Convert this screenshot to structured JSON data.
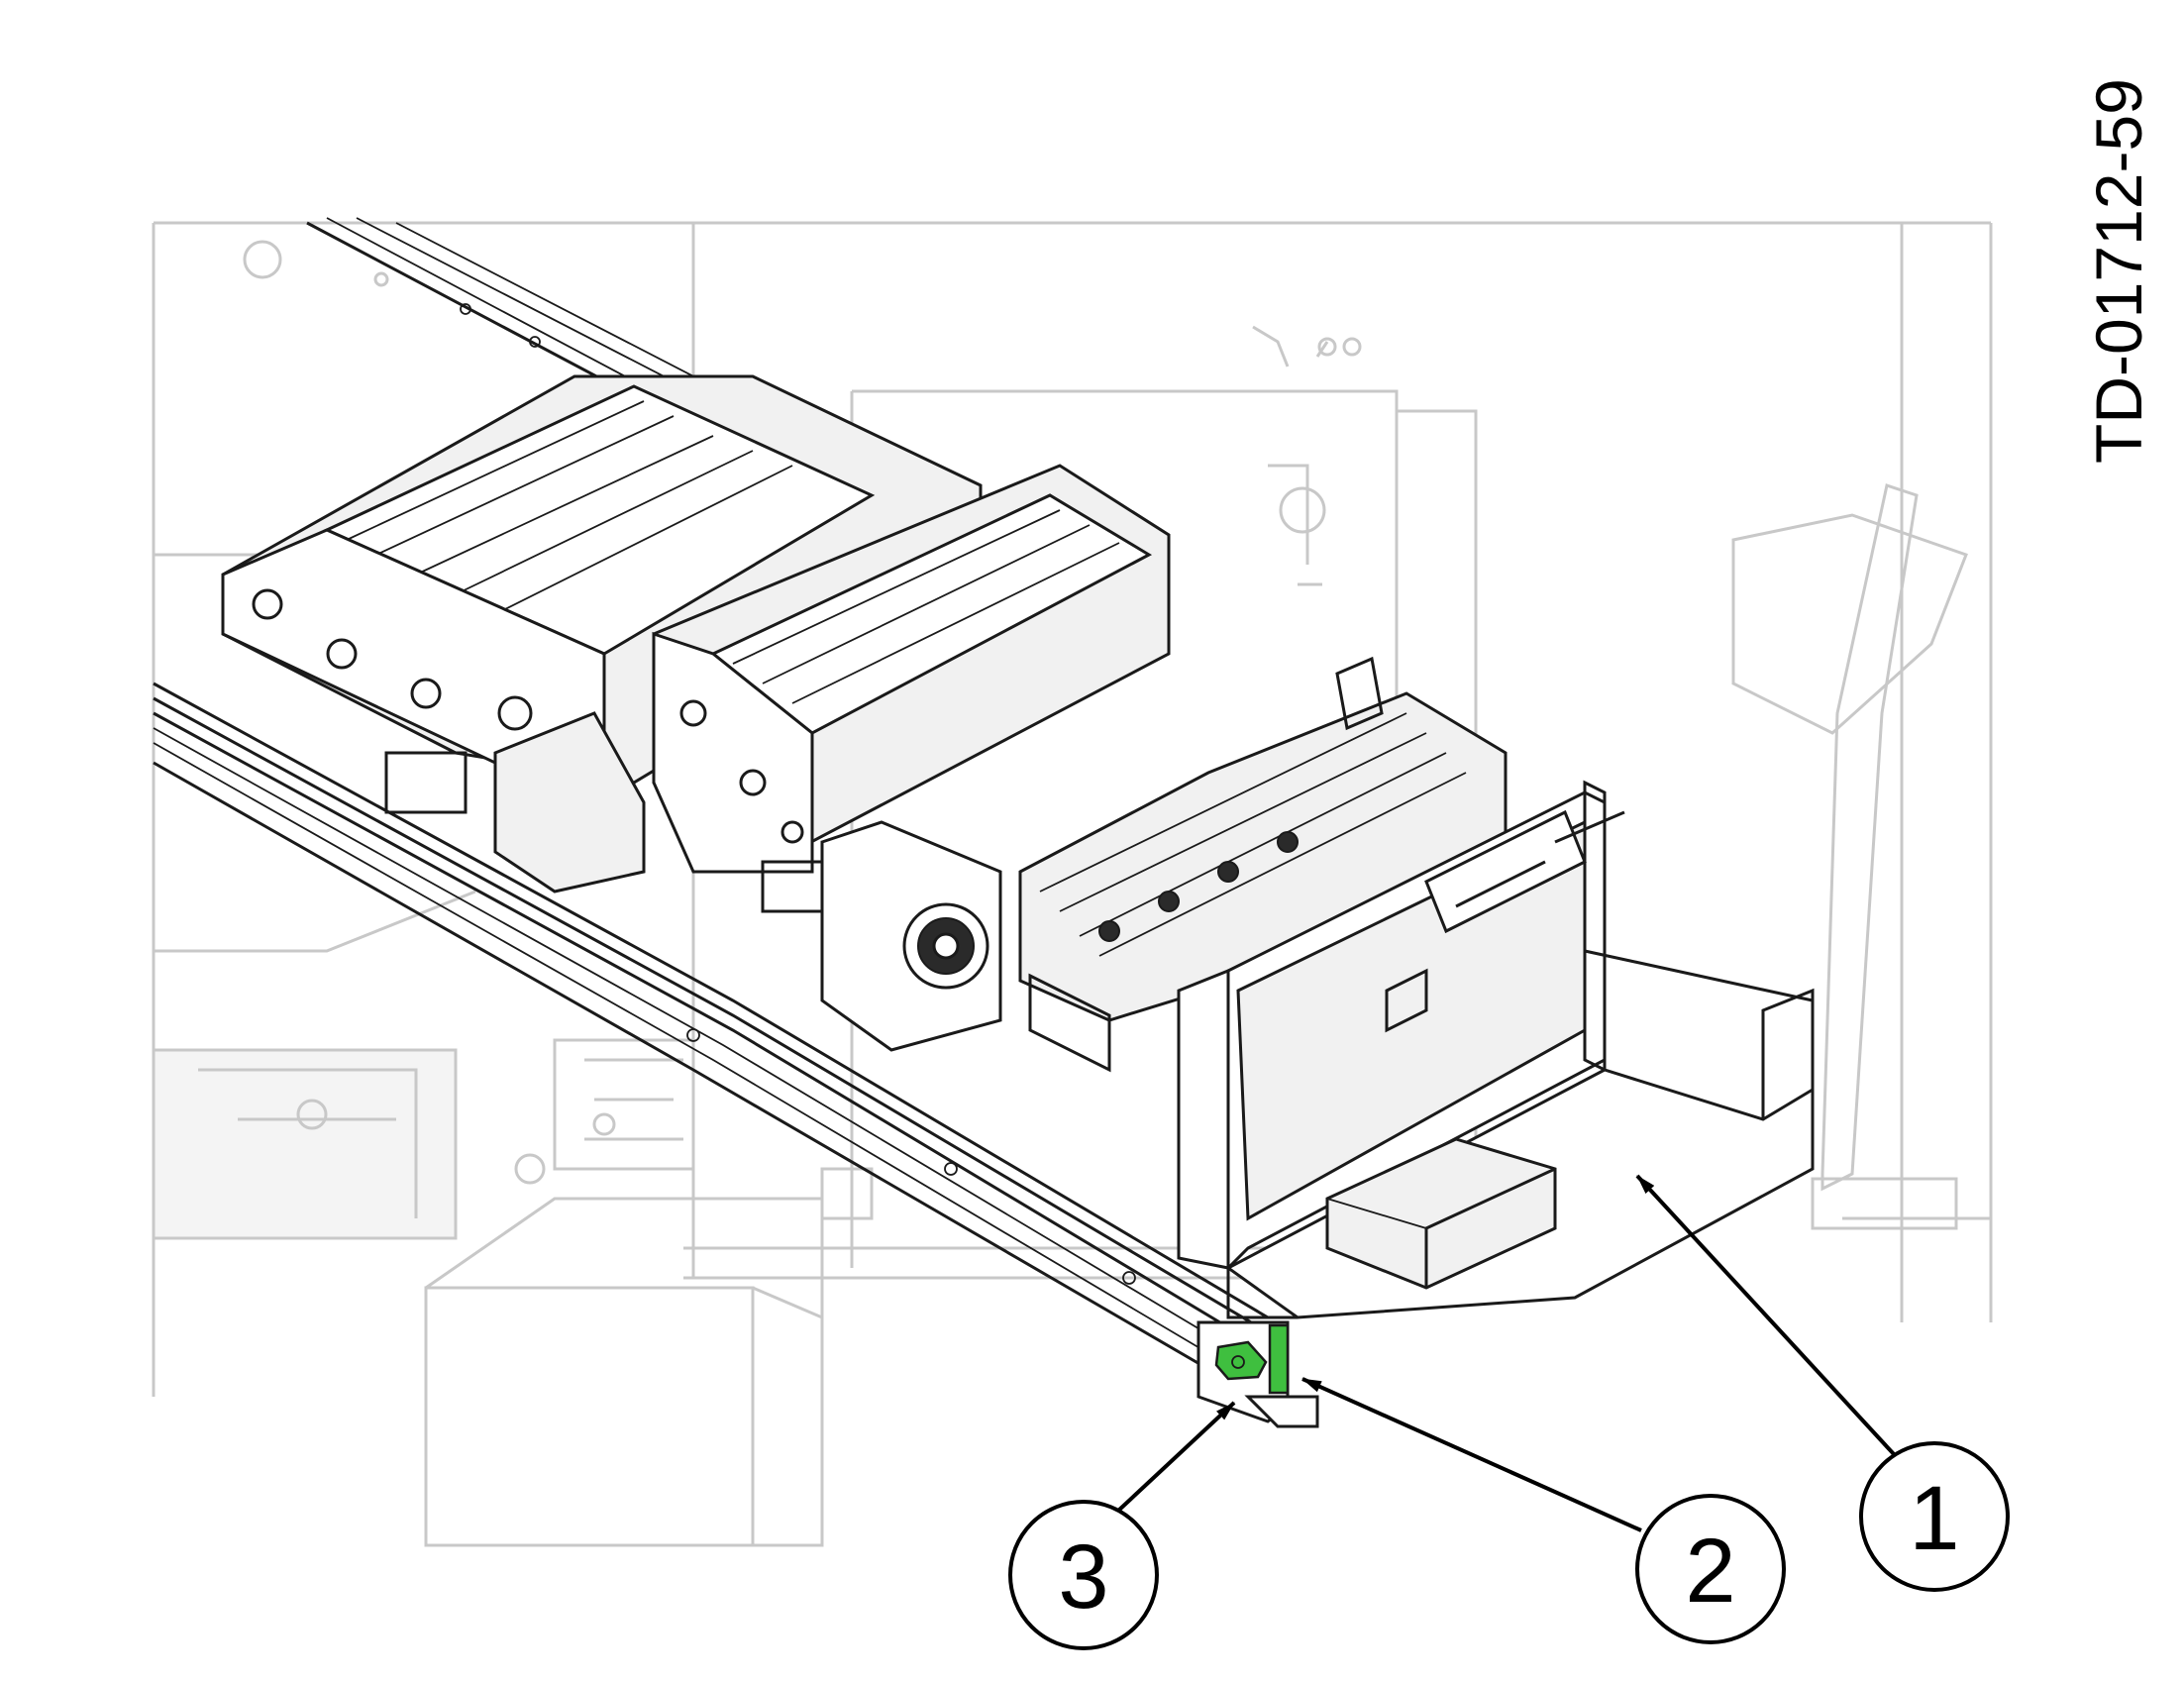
{
  "figure": {
    "document_id": "TD-01712-59",
    "callouts": [
      {
        "label": "1"
      },
      {
        "label": "2"
      },
      {
        "label": "3"
      }
    ],
    "highlight_color": "#3fbf3f",
    "icons": [
      "slide-out-module",
      "slide-rail",
      "rail-release-latch"
    ]
  }
}
